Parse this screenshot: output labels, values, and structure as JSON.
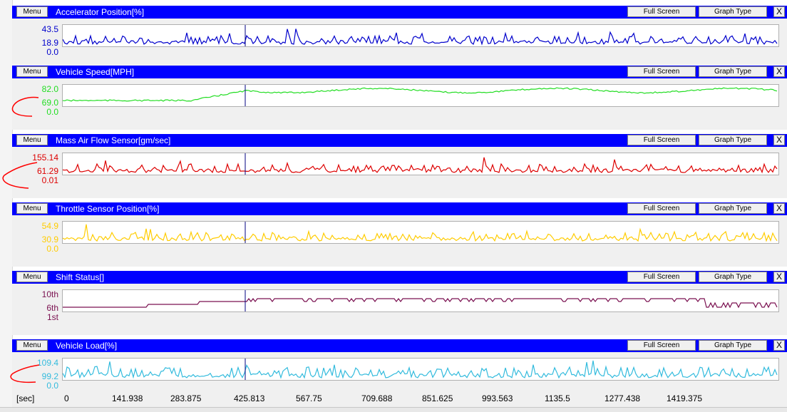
{
  "buttons": {
    "menu": "Menu",
    "full_screen": "Full Screen",
    "graph_type": "Graph Type",
    "close": "X"
  },
  "panels": [
    {
      "title": "Accelerator Position[%]",
      "color": "#0000cc",
      "y_labels": [
        "43.5",
        "18.9",
        "0.0"
      ]
    },
    {
      "title": "Vehicle Speed[MPH]",
      "color": "#22dd22",
      "y_labels": [
        "82.0",
        "69.0",
        "0.0"
      ]
    },
    {
      "title": "Mass Air Flow Sensor[gm/sec]",
      "color": "#dd0000",
      "y_labels": [
        "155.14",
        "61.29",
        "0.01"
      ]
    },
    {
      "title": "Throttle Sensor Position[%]",
      "color": "#ffcc00",
      "y_labels": [
        "54.9",
        "30.9",
        "0.0"
      ]
    },
    {
      "title": "Shift Status[]",
      "color": "#7a1050",
      "y_labels": [
        "10th",
        "6th",
        "1st"
      ]
    },
    {
      "title": "Vehicle Load[%]",
      "color": "#33bbdd",
      "y_labels": [
        "109.4",
        "99.2",
        "0.0"
      ]
    }
  ],
  "x_axis": {
    "unit": "[sec]",
    "ticks": [
      "0",
      "141.938",
      "283.875",
      "425.813",
      "567.75",
      "709.688",
      "851.625",
      "993.563",
      "1135.5",
      "1277.438",
      "1419.375"
    ]
  },
  "cursor_color": "#000080",
  "annotation_color": "#ff0000"
}
